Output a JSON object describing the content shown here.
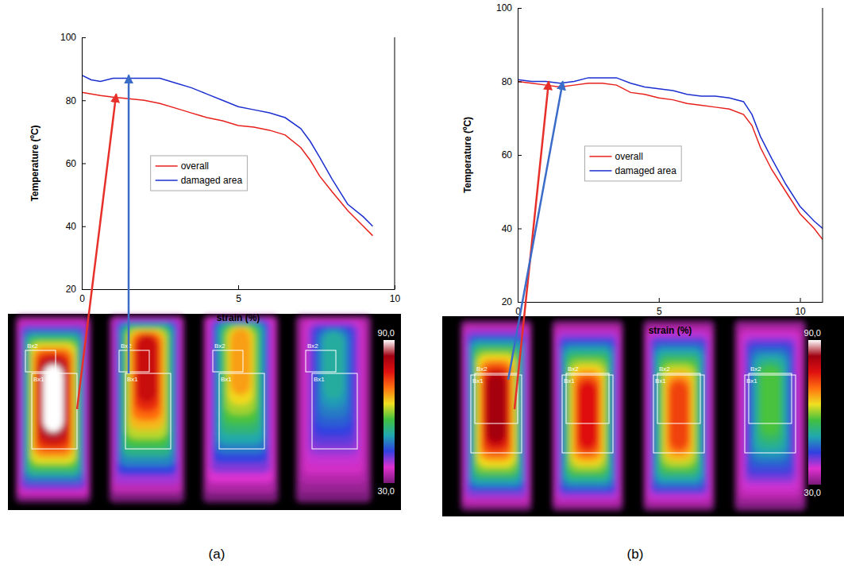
{
  "chart_data": [
    {
      "type": "line",
      "panel": "(a)",
      "x_label": "strain (%)",
      "y_label": "Temperature (ºC)",
      "xlim": [
        0,
        10
      ],
      "xticks": [
        0,
        5,
        10
      ],
      "ylim": [
        20,
        100
      ],
      "yticks": [
        20,
        40,
        60,
        80,
        100
      ],
      "legend": "center",
      "x": [
        0,
        0.3,
        0.6,
        1,
        1.5,
        2,
        2.5,
        3,
        3.5,
        4,
        4.5,
        5,
        5.5,
        6,
        6.5,
        7,
        7.3,
        7.6,
        8,
        8.5,
        9,
        9.3
      ],
      "series": [
        {
          "name": "overall",
          "color": "#e8201c",
          "values": [
            82.5,
            82,
            81.5,
            81,
            80.5,
            80,
            79,
            77.5,
            76,
            74.5,
            73.5,
            72,
            71.5,
            70.5,
            69,
            65,
            61,
            56,
            51,
            45,
            40,
            37
          ]
        },
        {
          "name": "damaged area",
          "color": "#1c2fd0",
          "values": [
            88,
            86.5,
            86,
            87,
            87,
            87,
            87,
            85.5,
            84,
            82,
            80,
            78,
            77,
            76,
            74.5,
            71,
            67,
            62,
            55,
            47,
            43,
            40
          ]
        }
      ],
      "annotations": [
        {
          "x": 1.1,
          "y": 82,
          "color": "#e8302a"
        },
        {
          "x": 1.5,
          "y": 88,
          "color": "#3a6cc8"
        }
      ],
      "thermal": {
        "boxes": [
          "Bx2",
          "Bx1"
        ],
        "colorbar": {
          "range": [
            30,
            90
          ],
          "ticks": [
            {
              "value": 90,
              "label": "90,0"
            },
            {
              "value": 30,
              "label": "30,0"
            }
          ]
        }
      }
    },
    {
      "type": "line",
      "panel": "(b)",
      "x_label": "strain (%)",
      "y_label": "Temperature (ºC)",
      "xlim": [
        0,
        10.8
      ],
      "xticks": [
        0,
        5,
        10
      ],
      "ylim": [
        20,
        100
      ],
      "yticks": [
        20,
        40,
        60,
        80,
        100
      ],
      "legend": "center",
      "x": [
        0,
        0.5,
        1,
        1.5,
        2,
        2.5,
        3,
        3.5,
        4,
        4.5,
        5,
        5.5,
        6,
        6.5,
        7,
        7.5,
        8,
        8.3,
        8.6,
        9,
        9.5,
        10,
        10.5,
        10.8
      ],
      "series": [
        {
          "name": "overall",
          "color": "#e8201c",
          "values": [
            80,
            79.5,
            79,
            78.5,
            79,
            79.5,
            79.5,
            79,
            77,
            76.5,
            75.5,
            75,
            74,
            73.5,
            73,
            72.5,
            71,
            68,
            62,
            56,
            50,
            44,
            40,
            37
          ]
        },
        {
          "name": "damaged area",
          "color": "#1c2fd0",
          "values": [
            80.5,
            80,
            80,
            79.5,
            80,
            81,
            81,
            81,
            79.5,
            78.5,
            78,
            77.5,
            76.5,
            76,
            76,
            75.5,
            74.5,
            71,
            65,
            59,
            52,
            46,
            42,
            40
          ]
        }
      ],
      "annotations": [
        {
          "x": 1.1,
          "y": 80,
          "color": "#e8302a"
        },
        {
          "x": 1.6,
          "y": 80,
          "color": "#3a6cc8"
        }
      ],
      "thermal": {
        "boxes": [
          "Bx2",
          "Bx1"
        ],
        "colorbar": {
          "range": [
            30,
            90
          ],
          "ticks": [
            {
              "value": 90,
              "label": "90,0"
            },
            {
              "value": 30,
              "label": "30,0"
            }
          ]
        }
      }
    }
  ]
}
